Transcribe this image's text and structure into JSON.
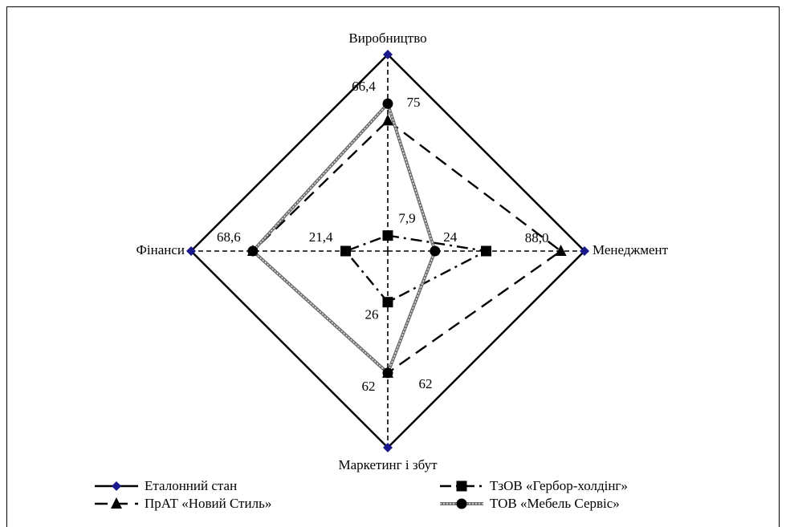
{
  "chart_data": {
    "type": "radar",
    "categories": [
      "Виробництво",
      "Менеджмент",
      "Маркетинг і збут",
      "Фінанси"
    ],
    "rlim": [
      0,
      100
    ],
    "legend": "bottom",
    "series": [
      {
        "name": "Еталонний стан",
        "color": "#000000",
        "marker_color": "#1a1a8c",
        "marker": "diamond",
        "dash": "solid",
        "values": [
          100,
          100,
          100,
          100
        ]
      },
      {
        "name": "ТзОВ «Гербор-холдінг»",
        "color": "#000000",
        "marker_color": "#000000",
        "marker": "square",
        "dash": "dashdot",
        "values": [
          7.9,
          50,
          26,
          21.4
        ],
        "value_labels": [
          "7,9",
          null,
          "26",
          "21,4"
        ]
      },
      {
        "name": "ПрАТ «Новий Стиль»",
        "color": "#000000",
        "marker_color": "#000000",
        "marker": "triangle",
        "dash": "dash",
        "values": [
          66.4,
          88.0,
          62,
          68.6
        ],
        "value_labels": [
          "66,4",
          "88,0",
          "62",
          null
        ]
      },
      {
        "name": "ТОВ «Мебель Сервіс»",
        "color": "#707070",
        "marker_color": "#000000",
        "marker": "circle",
        "dash": "dotted",
        "values": [
          75,
          24,
          62,
          68.6
        ],
        "value_labels": [
          "75",
          "24",
          "62",
          "68,6"
        ]
      }
    ]
  }
}
